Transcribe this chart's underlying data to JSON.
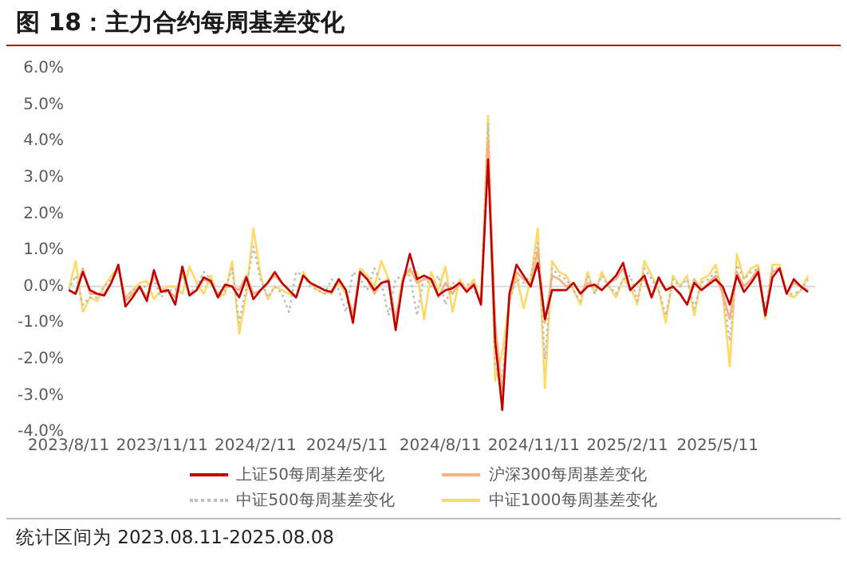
{
  "chart_data": {
    "type": "line",
    "title": "图 18：主力合约每周基差变化",
    "annotations": [
      "统计区间为 2023.08.11-2025.08.08"
    ],
    "x": [
      "2023-08-11",
      "2023-08-18",
      "2023-08-25",
      "2023-09-01",
      "2023-09-08",
      "2023-09-15",
      "2023-09-22",
      "2023-09-29",
      "2023-10-06",
      "2023-10-13",
      "2023-10-20",
      "2023-10-27",
      "2023-11-03",
      "2023-11-10",
      "2023-11-17",
      "2023-11-24",
      "2023-12-01",
      "2023-12-08",
      "2023-12-15",
      "2023-12-22",
      "2023-12-29",
      "2024-01-05",
      "2024-01-12",
      "2024-01-19",
      "2024-01-26",
      "2024-02-02",
      "2024-02-09",
      "2024-02-16",
      "2024-02-23",
      "2024-03-01",
      "2024-03-08",
      "2024-03-15",
      "2024-03-22",
      "2024-03-29",
      "2024-04-05",
      "2024-04-12",
      "2024-04-19",
      "2024-04-26",
      "2024-05-03",
      "2024-05-10",
      "2024-05-17",
      "2024-05-24",
      "2024-05-31",
      "2024-06-07",
      "2024-06-14",
      "2024-06-21",
      "2024-06-28",
      "2024-07-05",
      "2024-07-12",
      "2024-07-19",
      "2024-07-26",
      "2024-08-02",
      "2024-08-09",
      "2024-08-16",
      "2024-08-23",
      "2024-08-30",
      "2024-09-06",
      "2024-09-13",
      "2024-09-20",
      "2024-09-27",
      "2024-10-04",
      "2024-10-11",
      "2024-10-18",
      "2024-10-25",
      "2024-11-01",
      "2024-11-08",
      "2024-11-15",
      "2024-11-22",
      "2024-11-29",
      "2024-12-06",
      "2024-12-13",
      "2024-12-20",
      "2024-12-27",
      "2025-01-03",
      "2025-01-10",
      "2025-01-17",
      "2025-01-24",
      "2025-01-31",
      "2025-02-07",
      "2025-02-14",
      "2025-02-21",
      "2025-02-28",
      "2025-03-07",
      "2025-03-14",
      "2025-03-21",
      "2025-03-28",
      "2025-04-04",
      "2025-04-11",
      "2025-04-18",
      "2025-04-25",
      "2025-05-02",
      "2025-05-09",
      "2025-05-16",
      "2025-05-23",
      "2025-05-30",
      "2025-06-06",
      "2025-06-13",
      "2025-06-20",
      "2025-06-27",
      "2025-07-04",
      "2025-07-11",
      "2025-07-18",
      "2025-07-25",
      "2025-08-01",
      "2025-08-08"
    ],
    "series": [
      {
        "name": "上证50每周基差变化",
        "color": "#c00000",
        "values": [
          -0.1,
          -0.2,
          0.4,
          -0.1,
          -0.2,
          -0.25,
          0.1,
          0.6,
          -0.55,
          -0.3,
          0.0,
          -0.4,
          0.45,
          -0.15,
          -0.1,
          -0.5,
          0.55,
          -0.25,
          -0.1,
          0.25,
          0.15,
          -0.3,
          0.05,
          0.0,
          -0.3,
          0.25,
          -0.35,
          -0.1,
          0.1,
          0.4,
          0.1,
          -0.1,
          -0.3,
          0.3,
          0.1,
          0.0,
          -0.1,
          -0.15,
          0.2,
          -0.1,
          -1.0,
          0.4,
          0.2,
          -0.1,
          0.1,
          0.15,
          -1.2,
          0.1,
          0.9,
          0.2,
          0.3,
          0.2,
          -0.25,
          -0.1,
          -0.05,
          0.1,
          -0.15,
          0.05,
          -0.5,
          3.5,
          -1.5,
          -3.4,
          -0.2,
          0.6,
          0.3,
          0.0,
          0.65,
          -0.9,
          -0.1,
          -0.1,
          -0.1,
          0.1,
          -0.2,
          0.0,
          0.05,
          -0.1,
          0.1,
          0.3,
          0.65,
          -0.1,
          0.1,
          0.3,
          -0.3,
          0.25,
          -0.1,
          0.0,
          -0.2,
          -0.5,
          0.1,
          -0.1,
          0.05,
          0.2,
          0.0,
          -0.5,
          0.3,
          -0.15,
          0.1,
          0.4,
          -0.8,
          0.25,
          0.5,
          -0.2,
          0.2,
          0.0,
          -0.15
        ]
      },
      {
        "name": "沪深300每周基差变化",
        "color": "#f4b183",
        "values": [
          -0.1,
          -0.2,
          0.5,
          -0.2,
          -0.2,
          -0.2,
          0.1,
          0.5,
          -0.4,
          -0.2,
          0.0,
          -0.3,
          0.3,
          -0.1,
          -0.1,
          -0.3,
          0.4,
          -0.2,
          -0.1,
          0.2,
          0.1,
          -0.2,
          0.0,
          0.0,
          -0.1,
          0.3,
          -0.2,
          -0.1,
          0.1,
          0.3,
          0.1,
          -0.1,
          -0.3,
          0.3,
          0.1,
          0.0,
          -0.1,
          -0.2,
          0.2,
          -0.1,
          -0.8,
          0.4,
          0.2,
          -0.2,
          0.1,
          0.2,
          -0.9,
          0.2,
          0.5,
          0.1,
          0.2,
          0.2,
          -0.3,
          0.1,
          -0.2,
          0.1,
          -0.1,
          0.1,
          -0.5,
          4.0,
          -1.0,
          -3.0,
          -0.3,
          0.4,
          0.2,
          0.0,
          1.0,
          -1.0,
          0.3,
          0.2,
          0.0,
          0.1,
          -0.2,
          0.1,
          0.0,
          -0.1,
          0.1,
          0.2,
          0.5,
          -0.1,
          0.1,
          0.2,
          -0.3,
          0.2,
          -0.1,
          0.0,
          -0.2,
          -0.5,
          0.2,
          -0.1,
          0.1,
          0.3,
          -0.2,
          -0.9,
          0.4,
          0.0,
          0.2,
          0.5,
          -0.8,
          0.4,
          0.5,
          -0.2,
          0.1,
          0.0,
          -0.1
        ]
      },
      {
        "name": "中证500每周基差变化",
        "color": "#bfbfbf",
        "line_style": "dotted",
        "values": [
          -0.1,
          0.3,
          -0.5,
          -0.3,
          -0.3,
          0.0,
          0.2,
          0.4,
          -0.3,
          -0.1,
          0.0,
          0.0,
          0.2,
          -0.3,
          -0.1,
          -0.1,
          0.3,
          -0.2,
          0.0,
          0.4,
          0.2,
          -0.3,
          -0.1,
          0.5,
          -1.0,
          0.0,
          1.1,
          0.2,
          -0.3,
          0.0,
          -0.2,
          -0.7,
          0.4,
          0.3,
          0.0,
          -0.1,
          -0.2,
          0.2,
          -0.1,
          -0.7,
          0.4,
          0.2,
          -0.1,
          0.5,
          0.1,
          -0.8,
          0.2,
          0.3,
          0.3,
          -0.8,
          0.3,
          0.0,
          0.3,
          -0.5,
          0.1,
          0.0,
          0.1,
          -0.1,
          -0.4,
          4.5,
          -2.2,
          -2.5,
          -0.4,
          0.2,
          0.1,
          0.3,
          1.2,
          -2.0,
          0.5,
          0.3,
          0.2,
          -0.1,
          -0.4,
          0.3,
          -0.2,
          0.3,
          0.0,
          -0.2,
          0.2,
          0.3,
          -0.4,
          0.5,
          0.2,
          -0.1,
          -0.8,
          0.2,
          0.0,
          0.2,
          -0.6,
          0.1,
          0.2,
          0.4,
          -0.1,
          -1.5,
          0.6,
          0.2,
          0.4,
          0.5,
          -0.6,
          0.5,
          0.5,
          -0.2,
          -0.2,
          -0.1,
          0.2
        ]
      },
      {
        "name": "中证1000每周基差变化",
        "color": "#ffd966",
        "values": [
          -0.1,
          0.7,
          -0.7,
          -0.3,
          -0.4,
          0.0,
          0.3,
          0.5,
          -0.3,
          -0.1,
          0.1,
          0.15,
          -0.35,
          -0.1,
          0.0,
          0.0,
          -0.2,
          0.55,
          0.1,
          -0.2,
          0.3,
          -0.3,
          -0.2,
          0.7,
          -1.3,
          -0.2,
          1.6,
          0.3,
          -0.35,
          0.0,
          -0.1,
          -0.2,
          -0.3,
          0.4,
          0.1,
          -0.1,
          -0.2,
          -0.1,
          0.1,
          -0.2,
          -0.8,
          0.5,
          0.3,
          0.0,
          0.7,
          0.2,
          -1.0,
          0.25,
          0.4,
          0.4,
          -0.9,
          0.4,
          -0.1,
          0.55,
          -0.7,
          0.2,
          -0.1,
          0.2,
          -0.5,
          4.7,
          -2.6,
          -1.8,
          -0.4,
          0.3,
          -0.6,
          0.2,
          1.6,
          -2.8,
          0.7,
          0.4,
          0.3,
          -0.1,
          -0.5,
          0.4,
          -0.2,
          0.4,
          0.0,
          -0.3,
          0.2,
          0.0,
          -0.5,
          0.7,
          0.3,
          -0.1,
          -1.0,
          0.3,
          0.0,
          0.3,
          -0.8,
          0.2,
          0.3,
          0.6,
          -0.2,
          -2.2,
          0.9,
          0.2,
          0.5,
          0.6,
          -0.9,
          0.6,
          0.6,
          -0.2,
          -0.3,
          -0.1,
          0.3
        ]
      }
    ],
    "xlim": [
      "2023-08-11",
      "2025-08-15"
    ],
    "xticks": [
      {
        "value": "2023-08-11",
        "label": "2023/8/11"
      },
      {
        "value": "2023-11-11",
        "label": "2023/11/11"
      },
      {
        "value": "2024-02-11",
        "label": "2024/2/11"
      },
      {
        "value": "2024-05-11",
        "label": "2024/5/11"
      },
      {
        "value": "2024-08-11",
        "label": "2024/8/11"
      },
      {
        "value": "2024-11-11",
        "label": "2024/11/11"
      },
      {
        "value": "2025-02-11",
        "label": "2025/2/11"
      },
      {
        "value": "2025-05-11",
        "label": "2025/5/11"
      }
    ],
    "ylim": [
      -4,
      6
    ],
    "yticks": [
      {
        "value": -4,
        "label": "-4.0%"
      },
      {
        "value": -3,
        "label": "-3.0%"
      },
      {
        "value": -2,
        "label": "-2.0%"
      },
      {
        "value": -1,
        "label": "-1.0%"
      },
      {
        "value": 0,
        "label": "0.0%"
      },
      {
        "value": 1,
        "label": "1.0%"
      },
      {
        "value": 2,
        "label": "2.0%"
      },
      {
        "value": 3,
        "label": "3.0%"
      },
      {
        "value": 4,
        "label": "4.0%"
      },
      {
        "value": 5,
        "label": "5.0%"
      },
      {
        "value": 6,
        "label": "6.0%"
      }
    ],
    "ref_lines": [
      {
        "axis": "y",
        "value": 0,
        "color": "#d9d9d9"
      }
    ],
    "grid": false,
    "legend": "bottom",
    "marker": "none"
  }
}
